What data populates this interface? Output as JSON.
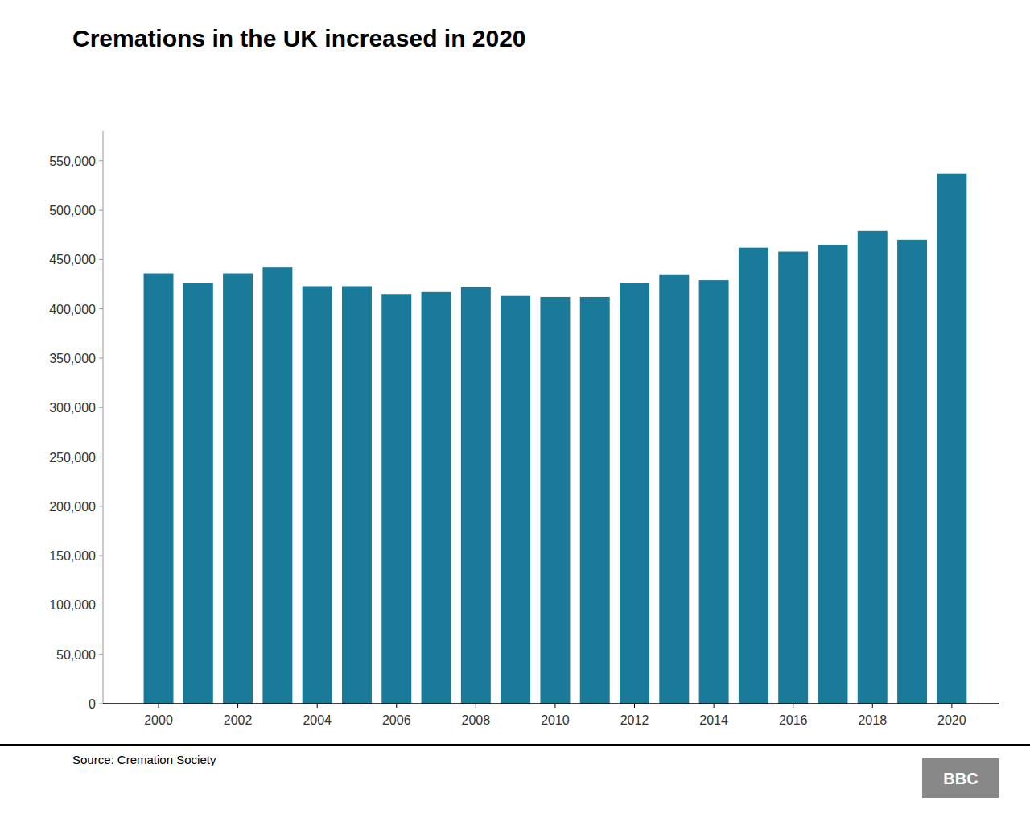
{
  "chart_data": {
    "type": "bar",
    "title": "Cremations in the UK increased in 2020",
    "x": [
      2000,
      2001,
      2002,
      2003,
      2004,
      2005,
      2006,
      2007,
      2008,
      2009,
      2010,
      2011,
      2012,
      2013,
      2014,
      2015,
      2016,
      2017,
      2018,
      2019,
      2020
    ],
    "values": [
      436000,
      426000,
      436000,
      442000,
      423000,
      423000,
      415000,
      417000,
      422000,
      413000,
      412000,
      412000,
      426000,
      435000,
      429000,
      462000,
      458000,
      465000,
      479000,
      470000,
      537000
    ],
    "color": "#1a7a9a",
    "xlim": [
      1998.6,
      2021.2
    ],
    "xticks": [
      2000,
      2002,
      2004,
      2006,
      2008,
      2010,
      2012,
      2014,
      2016,
      2018,
      2020
    ],
    "ylim": [
      0,
      580000
    ],
    "yticks": [
      0,
      {
        "value": 50000,
        "label": "50,000"
      },
      {
        "value": 100000,
        "label": "100,000"
      },
      {
        "value": 150000,
        "label": "150,000"
      },
      {
        "value": 200000,
        "label": "200,000"
      },
      {
        "value": 250000,
        "label": "250,000"
      },
      {
        "value": 300000,
        "label": "300,000"
      },
      {
        "value": 350000,
        "label": "350,000"
      },
      {
        "value": 400000,
        "label": "400,000"
      },
      {
        "value": 450000,
        "label": "450,000"
      },
      {
        "value": 500000,
        "label": "500,000"
      },
      {
        "value": 550000,
        "label": "550,000"
      }
    ],
    "grid": false,
    "annotations": [
      "Source: Cremation Society",
      "BBC"
    ]
  }
}
